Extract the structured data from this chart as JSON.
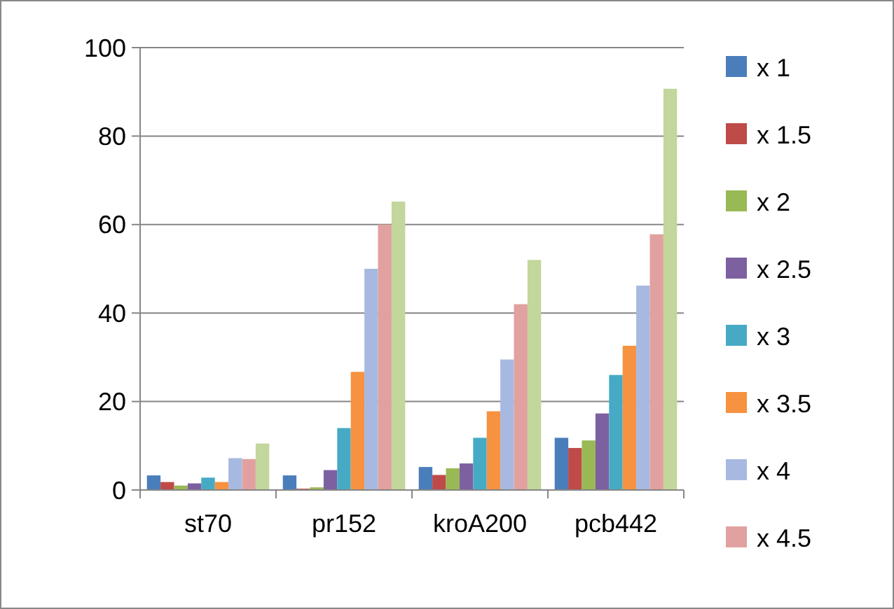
{
  "chart_data": {
    "type": "bar",
    "categories": [
      "st70",
      "pr152",
      "kroA200",
      "pcb442"
    ],
    "series": [
      {
        "name": "x 1",
        "color": "#4a7ebb",
        "values": [
          3.3,
          3.3,
          5.2,
          11.8
        ]
      },
      {
        "name": "x 1.5",
        "color": "#be4b48",
        "values": [
          1.8,
          0.3,
          3.4,
          9.5
        ]
      },
      {
        "name": "x 2",
        "color": "#98b954",
        "values": [
          1,
          0.6,
          4.9,
          11.2
        ]
      },
      {
        "name": "x 2.5",
        "color": "#7d60a0",
        "values": [
          1.5,
          4.5,
          6,
          17.3
        ]
      },
      {
        "name": "x 3",
        "color": "#46aac5",
        "values": [
          2.8,
          14,
          11.8,
          26
        ]
      },
      {
        "name": "x 3.5",
        "color": "#f69240",
        "values": [
          1.8,
          26.7,
          17.8,
          32.6
        ]
      },
      {
        "name": "x 4",
        "color": "#a7b9e0",
        "values": [
          7.2,
          50,
          29.5,
          46.2
        ]
      },
      {
        "name": "x 4.5",
        "color": "#e0a1a0",
        "values": [
          7,
          60,
          42,
          57.8
        ]
      },
      {
        "color": "#c3d69b",
        "values": [
          10.5,
          65.2,
          52,
          90.7
        ]
      }
    ],
    "ylim": [
      0,
      100
    ],
    "yticks": [
      0,
      20,
      40,
      60,
      80,
      100
    ],
    "grid": "y",
    "legend": "right"
  }
}
